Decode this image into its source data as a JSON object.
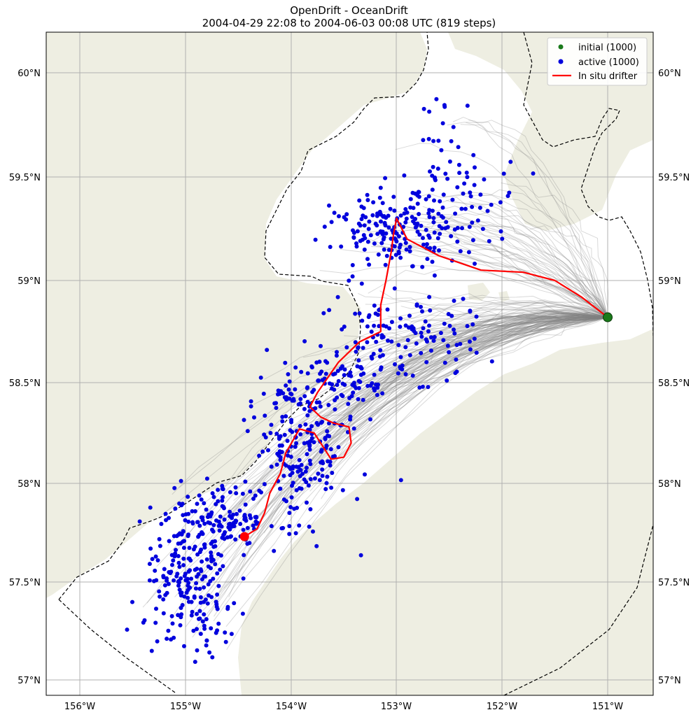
{
  "title": "OpenDrift - OceanDrift",
  "subtitle": "2004-04-29 22:08 to 2004-06-03 00:08 UTC (819 steps)",
  "axes": {
    "lon_ticks": [
      "156°W",
      "155°W",
      "154°W",
      "153°W",
      "152°W",
      "151°W"
    ],
    "lat_ticks": [
      "60°N",
      "59.5°N",
      "59°N",
      "58.5°N",
      "58°N",
      "57.5°N",
      "57°N"
    ]
  },
  "legend": {
    "placement": "top-right",
    "items": [
      {
        "label": "initial (1000)",
        "color": "#1a7a1a",
        "marker": "dot"
      },
      {
        "label": "active (1000)",
        "color": "#0000dd",
        "marker": "dot"
      },
      {
        "label": "In situ drifter",
        "color": "#ff0000",
        "marker": "line"
      }
    ]
  },
  "colors": {
    "land": "#eeeee2",
    "ocean": "#ffffff",
    "trajectories": "#808080",
    "particles": "#0000dd",
    "drifter": "#ff0000",
    "seed": "#1a7a1a",
    "grid": "#b0b0b0"
  },
  "chart_data": {
    "type": "scatter",
    "title": "OpenDrift - OceanDrift",
    "subtitle": "2004-04-29 22:08 to 2004-06-03 00:08 UTC (819 steps)",
    "xlim": [
      -156.3,
      -150.4
    ],
    "ylim": [
      56.95,
      60.2
    ],
    "grid": true,
    "legend_placement": "top-right",
    "seed_point": {
      "lon": -151.0,
      "lat": 58.82
    },
    "drifter_end": {
      "lon": -154.44,
      "lat": 57.73
    },
    "drifter_track": [
      [
        -151.0,
        58.82
      ],
      [
        -151.25,
        58.92
      ],
      [
        -151.5,
        59.0
      ],
      [
        -151.8,
        59.04
      ],
      [
        -152.2,
        59.05
      ],
      [
        -152.6,
        59.12
      ],
      [
        -152.9,
        59.2
      ],
      [
        -153.0,
        59.3
      ],
      [
        -153.03,
        59.22
      ],
      [
        -153.05,
        59.14
      ],
      [
        -153.1,
        59.0
      ],
      [
        -153.15,
        58.88
      ],
      [
        -153.15,
        58.75
      ],
      [
        -153.35,
        58.7
      ],
      [
        -153.55,
        58.6
      ],
      [
        -153.75,
        58.45
      ],
      [
        -153.82,
        58.38
      ],
      [
        -153.72,
        58.33
      ],
      [
        -153.6,
        58.3
      ],
      [
        -153.45,
        58.28
      ],
      [
        -153.43,
        58.2
      ],
      [
        -153.5,
        58.13
      ],
      [
        -153.62,
        58.12
      ],
      [
        -153.78,
        58.25
      ],
      [
        -153.92,
        58.27
      ],
      [
        -154.05,
        58.15
      ],
      [
        -154.1,
        58.05
      ],
      [
        -154.2,
        57.95
      ],
      [
        -154.25,
        57.85
      ],
      [
        -154.32,
        57.77
      ],
      [
        -154.44,
        57.73
      ]
    ],
    "particle_clusters": [
      {
        "lon": -154.95,
        "lat": 57.45,
        "count": 190,
        "spread_lon": 0.22,
        "spread_lat": 0.17
      },
      {
        "lon": -154.65,
        "lat": 57.82,
        "count": 150,
        "spread_lon": 0.28,
        "spread_lat": 0.08
      },
      {
        "lon": -153.9,
        "lat": 58.18,
        "count": 190,
        "spread_lon": 0.22,
        "spread_lat": 0.18
      },
      {
        "lon": -153.55,
        "lat": 58.5,
        "count": 100,
        "spread_lon": 0.3,
        "spread_lat": 0.1
      },
      {
        "lon": -152.9,
        "lat": 58.72,
        "count": 110,
        "spread_lon": 0.35,
        "spread_lat": 0.1
      },
      {
        "lon": -153.0,
        "lat": 59.25,
        "count": 160,
        "spread_lon": 0.3,
        "spread_lat": 0.08
      },
      {
        "lon": -152.45,
        "lat": 59.35,
        "count": 70,
        "spread_lon": 0.3,
        "spread_lat": 0.12
      },
      {
        "lon": -152.5,
        "lat": 59.7,
        "count": 20,
        "spread_lon": 0.2,
        "spread_lat": 0.1
      },
      {
        "lon": -153.3,
        "lat": 58.95,
        "count": 10,
        "spread_lon": 0.15,
        "spread_lat": 0.1
      }
    ]
  }
}
